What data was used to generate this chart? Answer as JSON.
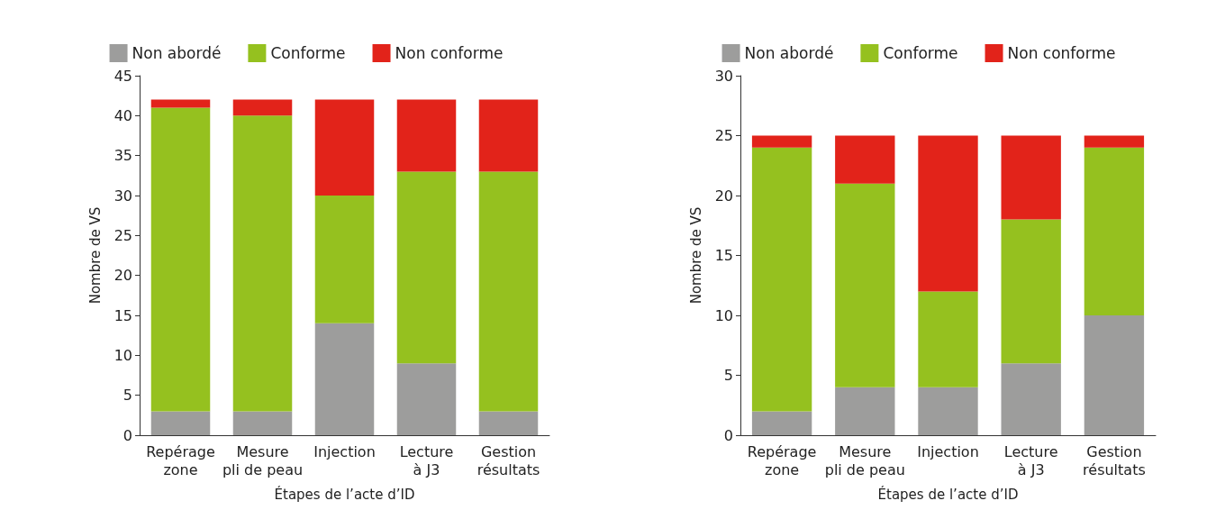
{
  "chart_data": [
    {
      "type": "bar",
      "stacked": true,
      "xlabel": "Étapes de l’acte d’ID",
      "ylabel": "Nombre de VS",
      "categories": [
        "Repérage\nzone",
        "Mesure\npli de peau",
        "Injection",
        "Lecture\nà J3",
        "Gestion\nrésultats"
      ],
      "series": [
        {
          "name": "Non abordé",
          "color": "#9d9d9c",
          "values": [
            3,
            3,
            14,
            9,
            3
          ]
        },
        {
          "name": "Conforme",
          "color": "#95c11f",
          "values": [
            38,
            37,
            16,
            24,
            30
          ]
        },
        {
          "name": "Non conforme",
          "color": "#e2231a",
          "values": [
            1,
            2,
            12,
            9,
            9
          ]
        }
      ],
      "ylim": [
        0,
        45
      ],
      "yticks": [
        0,
        5,
        10,
        15,
        20,
        25,
        30,
        35,
        40,
        45
      ],
      "grid": false,
      "legend": "top"
    },
    {
      "type": "bar",
      "stacked": true,
      "xlabel": "Étapes de l’acte d’ID",
      "ylabel": "Nombre de VS",
      "categories": [
        "Repérage\nzone",
        "Mesure\npli de peau",
        "Injection",
        "Lecture\nà J3",
        "Gestion\nrésultats"
      ],
      "series": [
        {
          "name": "Non abordé",
          "color": "#9d9d9c",
          "values": [
            2,
            4,
            4,
            6,
            10
          ]
        },
        {
          "name": "Conforme",
          "color": "#95c11f",
          "values": [
            22,
            17,
            8,
            12,
            14
          ]
        },
        {
          "name": "Non conforme",
          "color": "#e2231a",
          "values": [
            1,
            4,
            13,
            7,
            1
          ]
        }
      ],
      "ylim": [
        0,
        30
      ],
      "yticks": [
        0,
        5,
        10,
        15,
        20,
        25,
        30
      ],
      "grid": false,
      "legend": "top"
    }
  ]
}
